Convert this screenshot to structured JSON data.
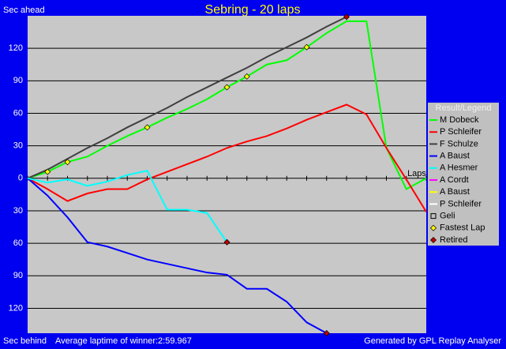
{
  "chart_data": {
    "type": "line",
    "title": "Sebring - 20 laps",
    "y_label_top": "Sec ahead",
    "y_label_bottom": "Sec behind",
    "x_label": "Laps",
    "note": "Average laptime of winner:2:59.967",
    "credit": "Generated by GPL Replay Analyser",
    "legend_title": "Result/Legend",
    "x": [
      0,
      1,
      2,
      3,
      4,
      5,
      6,
      7,
      8,
      9,
      10,
      11,
      12,
      13,
      14,
      15,
      16,
      17,
      18,
      19,
      20
    ],
    "xlim": [
      0,
      20
    ],
    "ylim": [
      -143,
      150
    ],
    "yticks": [
      {
        "value": -120,
        "label": "120"
      },
      {
        "value": -90,
        "label": "90"
      },
      {
        "value": -60,
        "label": "60"
      },
      {
        "value": -30,
        "label": "30"
      },
      0,
      30,
      60,
      90,
      120
    ],
    "grid": true,
    "series": [
      {
        "name": "M Dobeck",
        "color": "#00ff00",
        "values": [
          0,
          6,
          15,
          20,
          30,
          39,
          47,
          56,
          64,
          73,
          84,
          94,
          105,
          109,
          121,
          134,
          145,
          145,
          28,
          -10,
          0
        ]
      },
      {
        "name": "P Schleifer",
        "color": "#ff0000",
        "values": [
          0,
          -10,
          -21,
          -14,
          -10,
          -10,
          -1,
          6,
          13,
          20,
          28,
          34,
          39,
          46,
          54,
          61,
          68,
          59,
          28,
          -1,
          -31
        ]
      },
      {
        "name": "F Schulze",
        "color": "#404040",
        "values": [
          0,
          8,
          18,
          28,
          37,
          47,
          56,
          65,
          75,
          84,
          93,
          102,
          112,
          121,
          130,
          140,
          149,
          null,
          null,
          null,
          null
        ]
      },
      {
        "name": "A Baust",
        "color": "#0000ff",
        "values": [
          0,
          -16,
          -36,
          -59,
          -63,
          -69,
          -75,
          -79,
          -83,
          -87,
          -89,
          -102,
          -102,
          -114,
          -133,
          -143,
          null,
          null,
          null,
          null,
          null
        ]
      },
      {
        "name": "A Hesmer",
        "color": "#00ffff",
        "values": [
          0,
          -4,
          -1,
          -7,
          -3,
          3,
          7,
          -29,
          -29,
          -32,
          -59,
          null,
          null,
          null,
          null,
          null,
          null,
          null,
          null,
          null,
          null
        ]
      },
      {
        "name": "A Cordt",
        "color": "#ff00ff",
        "values": [
          null,
          null,
          null,
          null,
          null,
          null,
          null,
          null,
          null,
          null,
          null,
          null,
          null,
          null,
          null,
          null,
          null,
          null,
          null,
          null,
          null
        ]
      },
      {
        "name": "A Baust",
        "color": "#ffff00",
        "values": [
          null,
          null,
          null,
          null,
          null,
          null,
          null,
          null,
          null,
          null,
          null,
          null,
          null,
          null,
          null,
          null,
          null,
          null,
          null,
          null,
          null
        ]
      },
      {
        "name": "P Schleifer",
        "color": "#ffffff",
        "values": [
          null,
          null,
          null,
          null,
          null,
          null,
          null,
          null,
          null,
          null,
          null,
          null,
          null,
          null,
          null,
          null,
          null,
          null,
          null,
          null,
          null
        ]
      },
      {
        "name": "Geli",
        "color": "#000000",
        "values": [
          null,
          null,
          null,
          null,
          null,
          null,
          null,
          null,
          null,
          null,
          null,
          null,
          null,
          null,
          null,
          null,
          null,
          null,
          null,
          null,
          null
        ]
      }
    ],
    "points": [
      {
        "name": "Fastest Lap",
        "color": "#ffff00",
        "x": [
          1,
          2,
          6,
          10,
          11,
          14
        ],
        "values": [
          6,
          15,
          47,
          84,
          94,
          121
        ]
      },
      {
        "name": "Retired",
        "color": "#c00000",
        "x": [
          16,
          10,
          15
        ],
        "values": [
          149,
          -59,
          -143
        ]
      }
    ]
  }
}
